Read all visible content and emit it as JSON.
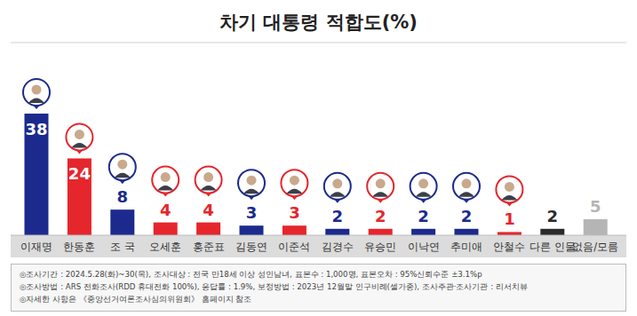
{
  "chart_data": {
    "type": "bar",
    "title": "차기 대통령 적합도(%)",
    "categories": [
      "이재명",
      "한동훈",
      "조 국",
      "오세훈",
      "홍준표",
      "김동연",
      "이준석",
      "김경수",
      "유승민",
      "이낙연",
      "추미애",
      "안철수",
      "다른 인물",
      "없음/모름"
    ],
    "values": [
      38,
      24,
      8,
      4,
      4,
      3,
      3,
      2,
      2,
      2,
      2,
      1,
      2,
      5
    ],
    "colors": [
      "#1c2a8d",
      "#e5262c",
      "#1c2a8d",
      "#e5262c",
      "#e5262c",
      "#1c2a8d",
      "#e5262c",
      "#1c2a8d",
      "#e5262c",
      "#1c2a8d",
      "#1c2a8d",
      "#e5262c",
      "#2b2b2b",
      "#b5b5b5"
    ],
    "ylim": [
      0,
      38
    ],
    "data_labels": true,
    "tick_labels": "x",
    "grid": false,
    "notes": [
      "◎조사기간 : 2024.5.28(화)~30(목), 조사대상 : 전국 만18세 이상 성인남녀, 표본수 : 1,000명, 표본오차 : 95%신뢰수준 ±3.1%p",
      "◎조사방법 : ARS 전화조사(RDD 휴대전화 100%), 응답률 : 1.9%, 보정방법 : 2023년 12월말 인구비례(셀가중), 조사주관·조사기관 : 리서치뷰",
      "◎자세한 사항은 《중앙선거여론조사심의위원회》 홈페이지 참조"
    ]
  }
}
